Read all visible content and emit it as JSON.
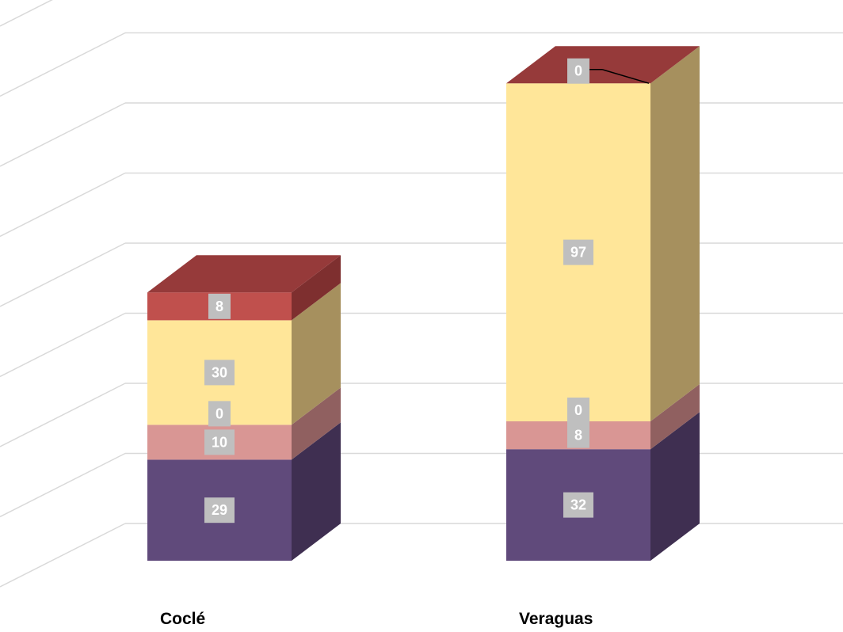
{
  "chart_data": {
    "type": "bar",
    "stacked": true,
    "three_d": true,
    "title": "",
    "xlabel": "",
    "ylabel": "",
    "grid": true,
    "legend": "none",
    "categories": [
      "Coclé",
      "Veraguas"
    ],
    "series": [
      {
        "color": "#604A7B",
        "side_color": "#3F2F51",
        "values": [
          29,
          32
        ]
      },
      {
        "color": "#D99694",
        "side_color": "#906060",
        "values": [
          10,
          8
        ]
      },
      {
        "color": "#FFE699",
        "side_color": "#A6905E",
        "values": [
          0,
          0
        ]
      },
      {
        "color": "#FFE699",
        "side_color": "#A6905E",
        "values": [
          30,
          97
        ]
      },
      {
        "color": "#C0504D",
        "side_color": "#7E2F2F",
        "top_color": "#963A3A",
        "values": [
          8,
          0
        ]
      }
    ],
    "label_series_order": [
      0,
      1,
      2,
      3,
      4
    ],
    "label_box_color": "#BFBFBF",
    "label_text_color": "#FFFFFF"
  }
}
